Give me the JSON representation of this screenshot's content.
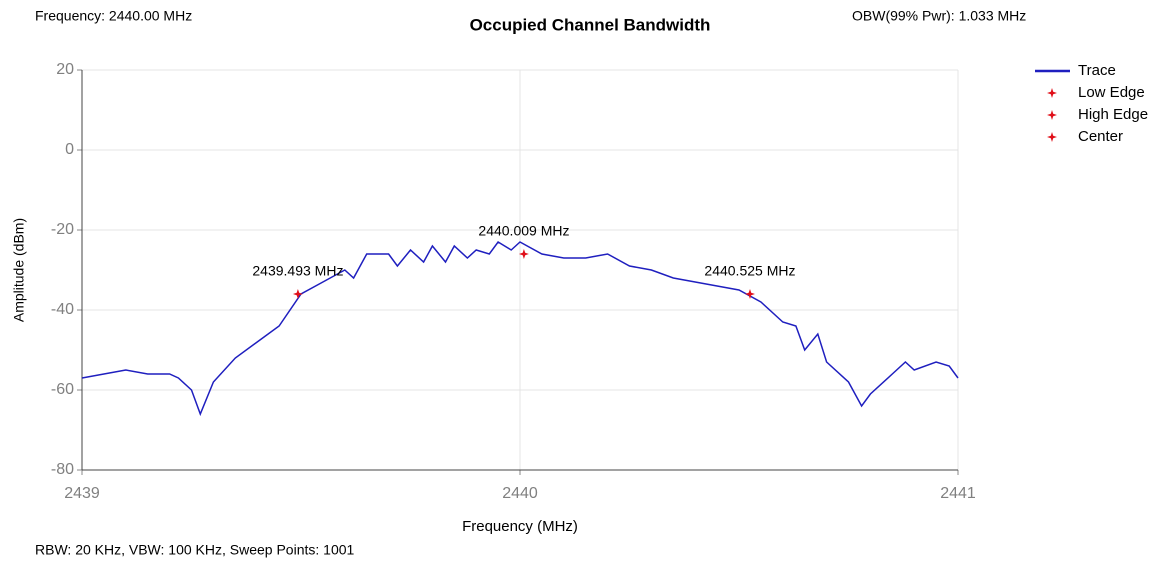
{
  "header": {
    "frequency": "Frequency: 2440.00 MHz",
    "obw": "OBW(99% Pwr): 1.033 MHz"
  },
  "footer": {
    "settings": "RBW: 20 KHz,  VBW: 100 KHz,  Sweep Points: 1001"
  },
  "chart_data": {
    "type": "line",
    "title": "Occupied Channel Bandwidth",
    "x_label": "Frequency (MHz)",
    "y_label": "Amplitude (dBm)",
    "xlim": [
      2439,
      2441
    ],
    "ylim": [
      -80,
      20
    ],
    "xticks": [
      2439,
      2440,
      2441
    ],
    "yticks": [
      20,
      0,
      -20,
      -40,
      -60,
      -80
    ],
    "grid": true,
    "series": [
      {
        "name": "Trace",
        "color": "#1f1fbf",
        "x": [
          2439.0,
          2439.05,
          2439.1,
          2439.15,
          2439.2,
          2439.22,
          2439.25,
          2439.27,
          2439.3,
          2439.35,
          2439.4,
          2439.45,
          2439.5,
          2439.55,
          2439.6,
          2439.62,
          2439.65,
          2439.7,
          2439.72,
          2439.75,
          2439.78,
          2439.8,
          2439.83,
          2439.85,
          2439.88,
          2439.9,
          2439.93,
          2439.95,
          2439.98,
          2440.0,
          2440.05,
          2440.1,
          2440.15,
          2440.2,
          2440.25,
          2440.3,
          2440.35,
          2440.4,
          2440.45,
          2440.5,
          2440.55,
          2440.6,
          2440.63,
          2440.65,
          2440.68,
          2440.7,
          2440.75,
          2440.78,
          2440.8,
          2440.85,
          2440.88,
          2440.9,
          2440.95,
          2440.98,
          2441.0
        ],
        "values": [
          -57,
          -56,
          -55,
          -56,
          -56,
          -57,
          -60,
          -66,
          -58,
          -52,
          -48,
          -44,
          -36,
          -33,
          -30,
          -32,
          -26,
          -26,
          -29,
          -25,
          -28,
          -24,
          -28,
          -24,
          -27,
          -25,
          -26,
          -23,
          -25,
          -23,
          -26,
          -27,
          -27,
          -26,
          -29,
          -30,
          -32,
          -33,
          -34,
          -35,
          -38,
          -43,
          -44,
          -50,
          -46,
          -53,
          -58,
          -64,
          -61,
          -56,
          -53,
          -55,
          -53,
          -54,
          -57
        ]
      },
      {
        "name": "Low Edge",
        "color": "#e0101a",
        "x": [
          2439.493
        ],
        "values": [
          -36
        ],
        "value_labels": [
          "2439.493 MHz"
        ]
      },
      {
        "name": "High Edge",
        "color": "#e0101a",
        "x": [
          2440.525
        ],
        "values": [
          -36
        ],
        "value_labels": [
          "2440.525 MHz"
        ]
      },
      {
        "name": "Center",
        "color": "#e0101a",
        "x": [
          2440.009
        ],
        "values": [
          -26
        ],
        "value_labels": [
          "2440.009 MHz"
        ]
      }
    ]
  }
}
